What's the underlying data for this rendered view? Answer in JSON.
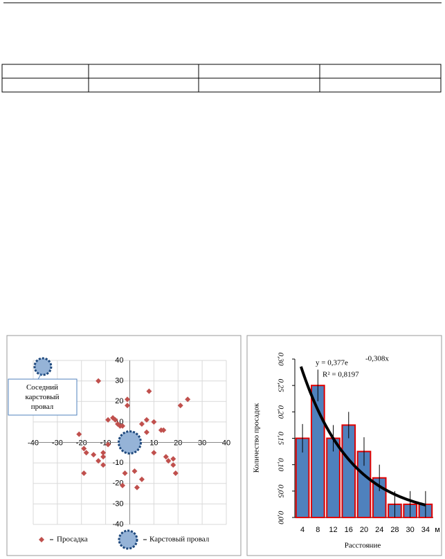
{
  "chart_data": [
    {
      "type": "scatter",
      "xlim": [
        -40,
        40
      ],
      "ylim": [
        -40,
        40
      ],
      "xticks": [
        -40,
        -30,
        -20,
        -10,
        0,
        10,
        20,
        30,
        40
      ],
      "yticks": [
        -40,
        -30,
        -20,
        -10,
        0,
        10,
        20,
        30,
        40
      ],
      "grid": true,
      "annotation": "Соседний карстовый провал",
      "series": [
        {
          "name": "Просадка",
          "color": "#c0504d",
          "x": [
            -13,
            8,
            24,
            21,
            -1,
            -1,
            -9,
            -7,
            -6,
            -5,
            -4,
            -3,
            5,
            7,
            10,
            13,
            14,
            7,
            -21,
            -19,
            -18,
            -15,
            -11,
            -11,
            -9,
            -13,
            -11,
            -19,
            -2,
            2,
            -3,
            3,
            5,
            10,
            15,
            16,
            18,
            18,
            19
          ],
          "values": [
            30,
            25,
            21,
            18,
            21,
            18,
            11,
            12,
            11,
            9,
            8,
            8,
            9,
            11,
            10,
            6,
            6,
            5,
            4,
            -3,
            -5,
            -6,
            -5,
            -7,
            -1,
            -9,
            -11,
            -15,
            -15,
            -14,
            -21,
            -22,
            -18,
            -5,
            -7,
            -9,
            -8,
            -11,
            -15
          ]
        },
        {
          "name": "Карстовый провал",
          "color": "#95b3d7",
          "x": [
            0,
            -36
          ],
          "values": [
            0,
            37
          ]
        }
      ]
    },
    {
      "type": "bar",
      "categories": [
        "4",
        "8",
        "12",
        "16",
        "20",
        "24",
        "28",
        "30",
        "34"
      ],
      "x_unit": "м",
      "values": [
        0.15,
        0.25,
        0.15,
        0.175,
        0.125,
        0.075,
        0.025,
        0.025,
        0.025
      ],
      "errors": [
        0.027,
        0.03,
        0.025,
        0.025,
        0.027,
        0.025,
        0.025,
        0.025,
        0.025
      ],
      "color": "#4f81bd",
      "edge_color": "#e00000",
      "ylim": [
        0,
        0.3
      ],
      "yticks": [
        {
          "value": 0,
          "label": "0,00"
        },
        {
          "value": 0.05,
          "label": "0,05"
        },
        {
          "value": 0.1,
          "label": "0,10"
        },
        {
          "value": 0.15,
          "label": "0,15"
        },
        {
          "value": 0.2,
          "label": "0,20"
        },
        {
          "value": 0.25,
          "label": "0,25"
        },
        {
          "value": 0.3,
          "label": "0,30"
        }
      ],
      "y_label": "Количество просадок",
      "x_label": "Расстояние",
      "trendline": {
        "coef": 0.377,
        "exp": -0.308,
        "equation": "y = 0,377e",
        "exponent_label": "-0,308x",
        "r2_label": "R² = 0,8197"
      }
    }
  ]
}
